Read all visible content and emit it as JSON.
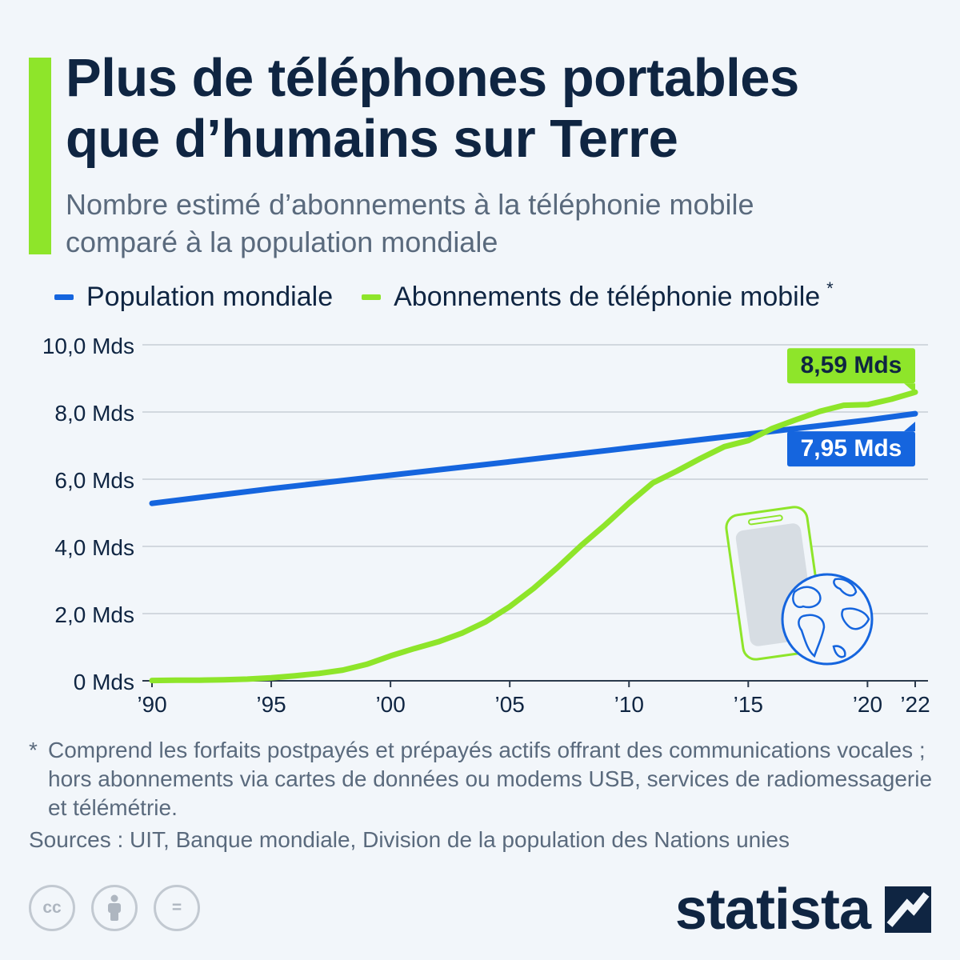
{
  "header": {
    "title_line1": "Plus de téléphones portables",
    "title_line2": "que d’humains sur Terre",
    "subtitle_line1": "Nombre estimé d’abonnements à la téléphonie mobile",
    "subtitle_line2": "comparé à la population mondiale"
  },
  "legend": {
    "population": "Population mondiale",
    "mobile": "Abonnements de téléphonie mobile",
    "asterisk": "*"
  },
  "colors": {
    "population": "#1565de",
    "mobile": "#8ee52a",
    "accent": "#8ee52a",
    "navy": "#0f2542"
  },
  "chart_data": {
    "type": "line",
    "title": "Plus de téléphones portables que d’humains sur Terre",
    "subtitle": "Nombre estimé d’abonnements à la téléphonie mobile comparé à la population mondiale",
    "xlabel": "",
    "ylabel": "",
    "xlim": [
      1990,
      2022
    ],
    "ylim": [
      0,
      10
    ],
    "y_ticks": [
      0,
      2,
      4,
      6,
      8,
      10
    ],
    "y_tick_labels": [
      "0 Mds",
      "2,0 Mds",
      "4,0 Mds",
      "6,0 Mds",
      "8,0 Mds",
      "10,0 Mds"
    ],
    "x_ticks": [
      1990,
      1995,
      2000,
      2005,
      2010,
      2015,
      2020,
      2022
    ],
    "x_tick_labels": [
      "’90",
      "’95",
      "’00",
      "’05",
      "’10",
      "’15",
      "’20",
      "’22"
    ],
    "grid": true,
    "series": [
      {
        "name": "Population mondiale",
        "color": "#1565de",
        "x": [
          1990,
          1995,
          2000,
          2005,
          2010,
          2015,
          2020,
          2022
        ],
        "values": [
          5.28,
          5.72,
          6.12,
          6.52,
          6.93,
          7.34,
          7.76,
          7.95
        ],
        "end_label": "7,95 Mds"
      },
      {
        "name": "Abonnements de téléphonie mobile",
        "color": "#8ee52a",
        "x": [
          1990,
          1991,
          1992,
          1993,
          1994,
          1995,
          1996,
          1997,
          1998,
          1999,
          2000,
          2001,
          2002,
          2003,
          2004,
          2005,
          2006,
          2007,
          2008,
          2009,
          2010,
          2011,
          2012,
          2013,
          2014,
          2015,
          2016,
          2017,
          2018,
          2019,
          2020,
          2021,
          2022
        ],
        "values": [
          0.01,
          0.02,
          0.02,
          0.03,
          0.05,
          0.09,
          0.15,
          0.22,
          0.32,
          0.49,
          0.74,
          0.96,
          1.16,
          1.42,
          1.76,
          2.21,
          2.75,
          3.37,
          4.03,
          4.64,
          5.29,
          5.89,
          6.24,
          6.62,
          6.97,
          7.15,
          7.51,
          7.77,
          8.02,
          8.2,
          8.22,
          8.38,
          8.59
        ],
        "end_label": "8,59 Mds"
      }
    ]
  },
  "footnote": {
    "asterisk": "*",
    "text": "Comprend les forfaits postpayés et prépayés actifs offrant des communications vocales ; hors abonnements via cartes de données ou modems USB, services de radiomessagerie et télémétrie."
  },
  "sources": "Sources : UIT, Banque mondiale, Division de la population des Nations unies",
  "license": {
    "icons": [
      "cc-icon",
      "by-attribution-icon",
      "nd-equals-icon"
    ],
    "cc_text": "cc",
    "nd_text": "="
  },
  "brand": {
    "name": "statista",
    "icon": "statista-logo-icon"
  }
}
